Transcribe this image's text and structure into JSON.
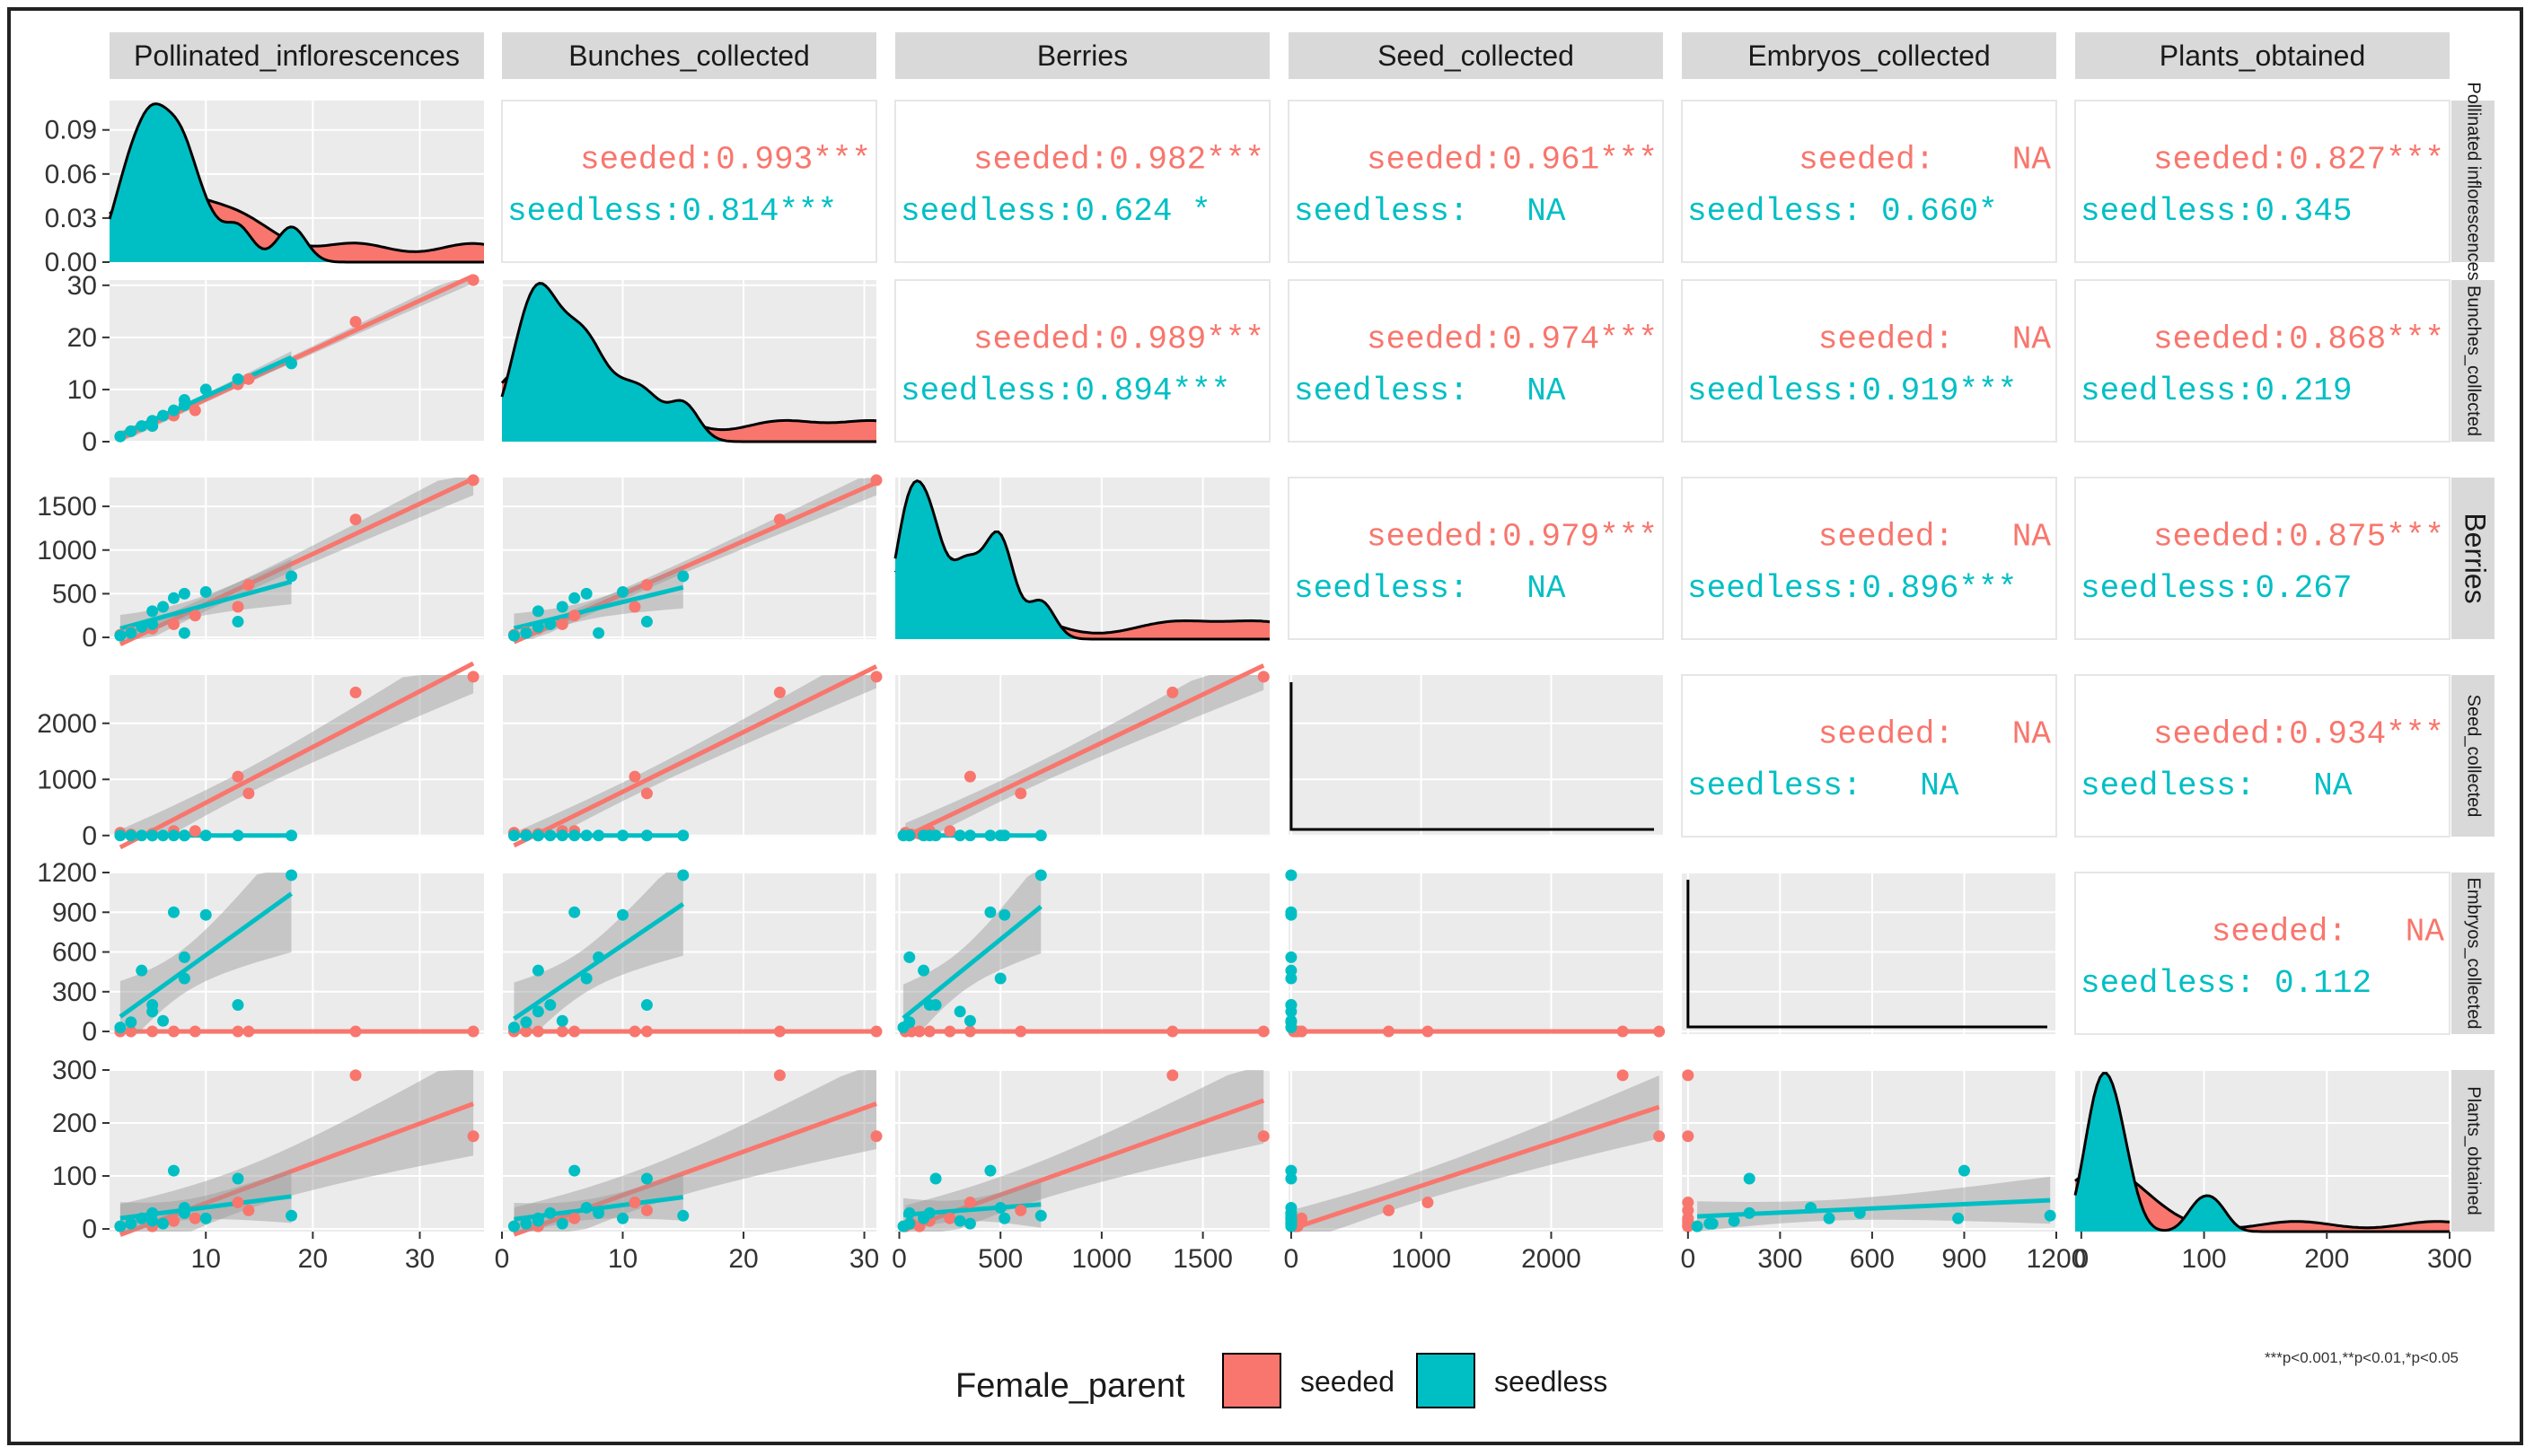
{
  "chart_data": {
    "type": "scatter",
    "title": "",
    "variables": [
      "Pollinated_inflorescences",
      "Bunches_collected",
      "Berries",
      "Seed_collected",
      "Embryos_collected",
      "Plants_obtained"
    ],
    "right_strip_labels": [
      "Pollinated inflorescences",
      "Bunches_collected",
      "Berries",
      "Seed_collected",
      "Embryos_collected",
      "Plants_obtained"
    ],
    "colors": {
      "seeded": "#F8766D",
      "seedless": "#00BFC4"
    },
    "axis_ranges": [
      {
        "lim": [
          1,
          36
        ],
        "ticks": [
          10,
          20,
          30
        ],
        "tick_labels": [
          "10",
          "20",
          "30"
        ]
      },
      {
        "lim": [
          0,
          31
        ],
        "ticks": [
          0,
          10,
          20,
          30
        ],
        "tick_labels": [
          "0",
          "10",
          "20",
          "30"
        ]
      },
      {
        "lim": [
          -20,
          1830
        ],
        "ticks": [
          0,
          500,
          1000,
          1500
        ],
        "tick_labels": [
          "0",
          "500",
          "1000",
          "1500"
        ]
      },
      {
        "lim": [
          -20,
          2860
        ],
        "ticks": [
          0,
          1000,
          2000
        ],
        "tick_labels": [
          "0",
          "1000",
          "2000"
        ]
      },
      {
        "lim": [
          -20,
          1200
        ],
        "ticks": [
          0,
          300,
          600,
          900,
          1200
        ],
        "tick_labels": [
          "0",
          "300",
          "600",
          "900",
          "1200"
        ]
      },
      {
        "lim": [
          -5,
          300
        ],
        "ticks": [
          0,
          100,
          200,
          300
        ],
        "tick_labels": [
          "0",
          "100",
          "200",
          "300"
        ]
      }
    ],
    "density_y_ticks": [
      0.0,
      0.03,
      0.06,
      0.09
    ],
    "density_y_labels": [
      "0.00",
      "0.03",
      "0.06",
      "0.09"
    ],
    "density_y_lim": [
      0,
      0.11
    ],
    "series": [
      {
        "name": "seeded",
        "points": [
          [
            2,
            1,
            30,
            50,
            0,
            5
          ],
          [
            3,
            2,
            60,
            20,
            0,
            10
          ],
          [
            5,
            3,
            100,
            30,
            0,
            5
          ],
          [
            7,
            5,
            150,
            80,
            0,
            15
          ],
          [
            9,
            6,
            250,
            80,
            0,
            20
          ],
          [
            13,
            11,
            350,
            1050,
            0,
            50
          ],
          [
            14,
            12,
            600,
            750,
            0,
            35
          ],
          [
            24,
            23,
            1350,
            2550,
            0,
            290
          ],
          [
            35,
            31,
            1800,
            2830,
            0,
            175
          ]
        ]
      },
      {
        "name": "seedless",
        "points": [
          [
            2,
            1,
            20,
            0,
            30,
            5
          ],
          [
            3,
            2,
            50,
            0,
            70,
            10
          ],
          [
            4,
            3,
            120,
            0,
            460,
            20
          ],
          [
            5,
            4,
            150,
            0,
            200,
            30
          ],
          [
            5,
            3,
            300,
            0,
            150,
            15
          ],
          [
            6,
            5,
            350,
            0,
            80,
            10
          ],
          [
            7,
            6,
            450,
            0,
            900,
            110
          ],
          [
            8,
            7,
            500,
            0,
            400,
            40
          ],
          [
            8,
            8,
            50,
            0,
            560,
            30
          ],
          [
            10,
            10,
            520,
            0,
            880,
            20
          ],
          [
            13,
            12,
            180,
            0,
            200,
            95
          ],
          [
            18,
            15,
            700,
            0,
            1180,
            25
          ]
        ]
      }
    ],
    "correlations": [
      {
        "row": 0,
        "col": 1,
        "seeded": "seeded:0.993***",
        "seedless": "seedless:0.814***"
      },
      {
        "row": 0,
        "col": 2,
        "seeded": "seeded:0.982***",
        "seedless": "seedless:0.624 *"
      },
      {
        "row": 0,
        "col": 3,
        "seeded": "seeded:0.961***",
        "seedless": "seedless:   NA"
      },
      {
        "row": 0,
        "col": 4,
        "seeded": "seeded:    NA",
        "seedless": "seedless: 0.660*"
      },
      {
        "row": 0,
        "col": 5,
        "seeded": "seeded:0.827***",
        "seedless": "seedless:0.345"
      },
      {
        "row": 1,
        "col": 2,
        "seeded": "seeded:0.989***",
        "seedless": "seedless:0.894***"
      },
      {
        "row": 1,
        "col": 3,
        "seeded": "seeded:0.974***",
        "seedless": "seedless:   NA"
      },
      {
        "row": 1,
        "col": 4,
        "seeded": "seeded:   NA",
        "seedless": "seedless:0.919***"
      },
      {
        "row": 1,
        "col": 5,
        "seeded": "seeded:0.868***",
        "seedless": "seedless:0.219"
      },
      {
        "row": 2,
        "col": 3,
        "seeded": "seeded:0.979***",
        "seedless": "seedless:   NA"
      },
      {
        "row": 2,
        "col": 4,
        "seeded": "seeded:   NA",
        "seedless": "seedless:0.896***"
      },
      {
        "row": 2,
        "col": 5,
        "seeded": "seeded:0.875***",
        "seedless": "seedless:0.267"
      },
      {
        "row": 3,
        "col": 4,
        "seeded": "seeded:   NA",
        "seedless": "seedless:   NA"
      },
      {
        "row": 3,
        "col": 5,
        "seeded": "seeded:0.934***",
        "seedless": "seedless:   NA"
      },
      {
        "row": 4,
        "col": 5,
        "seeded": "seeded:   NA",
        "seedless": "seedless: 0.112"
      }
    ],
    "legend": {
      "title": "Female_parent",
      "entries": [
        "seeded",
        "seedless"
      ],
      "position": "bottom"
    },
    "footnote": "***p<0.001,**p<0.01,*p<0.05",
    "grid": true
  }
}
